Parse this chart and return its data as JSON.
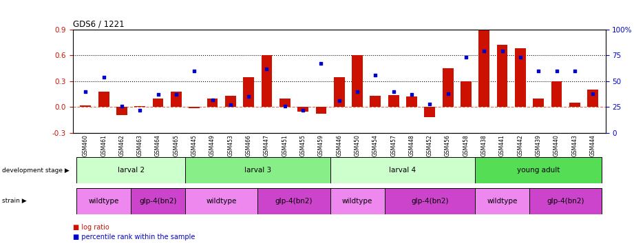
{
  "title": "GDS6 / 1221",
  "samples": [
    "GSM460",
    "GSM461",
    "GSM462",
    "GSM463",
    "GSM464",
    "GSM465",
    "GSM445",
    "GSM449",
    "GSM453",
    "GSM466",
    "GSM447",
    "GSM451",
    "GSM455",
    "GSM459",
    "GSM446",
    "GSM450",
    "GSM454",
    "GSM457",
    "GSM448",
    "GSM452",
    "GSM456",
    "GSM458",
    "GSM438",
    "GSM441",
    "GSM442",
    "GSM439",
    "GSM440",
    "GSM443",
    "GSM444"
  ],
  "log_ratio": [
    0.02,
    0.18,
    -0.09,
    0.01,
    0.1,
    0.18,
    -0.01,
    0.1,
    0.13,
    0.35,
    0.6,
    0.1,
    -0.05,
    -0.08,
    0.35,
    0.6,
    0.13,
    0.14,
    0.12,
    -0.12,
    0.45,
    0.3,
    0.9,
    0.72,
    0.68,
    0.1,
    0.3,
    0.05,
    0.2
  ],
  "percentile": [
    0.4,
    0.54,
    0.26,
    0.22,
    0.37,
    0.37,
    0.6,
    0.32,
    0.27,
    0.35,
    0.62,
    0.26,
    0.22,
    0.67,
    0.31,
    0.4,
    0.56,
    0.4,
    0.37,
    0.28,
    0.38,
    0.73,
    0.79,
    0.79,
    0.73,
    0.6,
    0.6,
    0.6,
    0.38
  ],
  "dev_stages": [
    {
      "label": "larval 2",
      "start": 0,
      "end": 6,
      "color": "#ccffcc"
    },
    {
      "label": "larval 3",
      "start": 6,
      "end": 14,
      "color": "#88ee88"
    },
    {
      "label": "larval 4",
      "start": 14,
      "end": 22,
      "color": "#ccffcc"
    },
    {
      "label": "young adult",
      "start": 22,
      "end": 29,
      "color": "#55dd55"
    }
  ],
  "strains": [
    {
      "label": "wildtype",
      "start": 0,
      "end": 3,
      "color": "#ee88ee"
    },
    {
      "label": "glp-4(bn2)",
      "start": 3,
      "end": 6,
      "color": "#cc44cc"
    },
    {
      "label": "wildtype",
      "start": 6,
      "end": 10,
      "color": "#ee88ee"
    },
    {
      "label": "glp-4(bn2)",
      "start": 10,
      "end": 14,
      "color": "#cc44cc"
    },
    {
      "label": "wildtype",
      "start": 14,
      "end": 17,
      "color": "#ee88ee"
    },
    {
      "label": "glp-4(bn2)",
      "start": 17,
      "end": 22,
      "color": "#cc44cc"
    },
    {
      "label": "wildtype",
      "start": 22,
      "end": 25,
      "color": "#ee88ee"
    },
    {
      "label": "glp-4(bn2)",
      "start": 25,
      "end": 29,
      "color": "#cc44cc"
    }
  ],
  "bar_color": "#cc1100",
  "dot_color": "#0000cc",
  "ylim_left": [
    -0.3,
    0.9
  ],
  "ylim_right": [
    0,
    100
  ],
  "yticks_left": [
    -0.3,
    0.0,
    0.3,
    0.6,
    0.9
  ],
  "yticks_right": [
    0,
    25,
    50,
    75,
    100
  ],
  "ytick_labels_right": [
    "0",
    "25",
    "50",
    "75",
    "100%"
  ],
  "hlines": [
    0.3,
    0.6
  ],
  "zero_line": 0.0
}
